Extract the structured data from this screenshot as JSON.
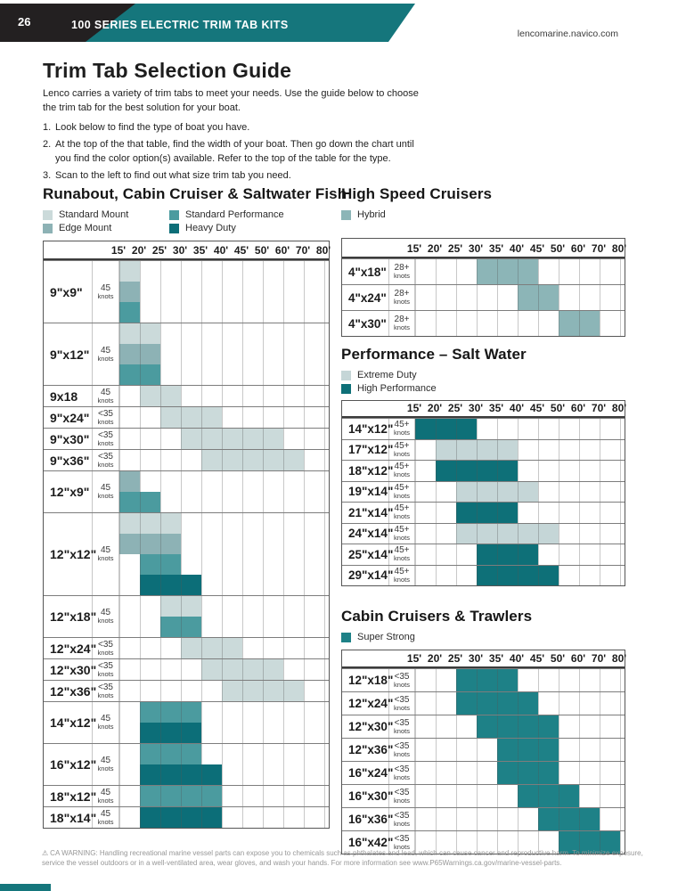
{
  "header": {
    "page_number": "26",
    "title": "100 SERIES ELECTRIC TRIM TAB KITS",
    "website": "lencomarine.navico.com"
  },
  "intro": {
    "title": "Trim Tab Selection Guide",
    "paragraph": "Lenco carries a variety of trim tabs to meet your needs. Use the guide below to choose the trim tab for the best solution for your boat.",
    "steps": [
      {
        "num": "1.",
        "text": "Look below to find the type of boat you have."
      },
      {
        "num": "2.",
        "text": "At the top of the that table, find the width of your boat. Then go down the chart until you find the color option(s) available. Refer to the top of the table for the type."
      },
      {
        "num": "3.",
        "text": "Scan to the left to find out what size trim tab you need."
      }
    ]
  },
  "colors": {
    "banner_teal": "#15767C",
    "banner_black": "#232021",
    "standard_mount": "#CBDADA",
    "edge_mount": "#8DB2B5",
    "standard_performance": "#4B9B9F",
    "heavy_duty": "#0C6E78",
    "hybrid": "#8CB5B7",
    "extreme_duty": "#C5D6D7",
    "high_performance": "#0E7078",
    "super_strong": "#1E8187"
  },
  "tables": [
    {
      "title": "Runabout, Cabin Cruiser & Saltwater Fish",
      "legend_columns": 2,
      "legend": [
        {
          "label": "Standard Mount",
          "color": "standard_mount"
        },
        {
          "label": "Standard Performance",
          "color": "standard_performance"
        },
        {
          "label": "Edge Mount",
          "color": "edge_mount"
        },
        {
          "label": "Heavy Duty",
          "color": "heavy_duty"
        }
      ],
      "columns": [
        "15'",
        "20'",
        "25'",
        "30'",
        "35'",
        "40'",
        "45'",
        "50'",
        "60'",
        "70'",
        "80'"
      ],
      "rows": [
        {
          "size": "9\"x9\"",
          "speed": "45",
          "unit": "knots",
          "bands": [
            {
              "color": "standard_mount",
              "from": "15'",
              "to": "20'"
            },
            {
              "color": "edge_mount",
              "from": "15'",
              "to": "20'"
            },
            {
              "color": "standard_performance",
              "from": "15'",
              "to": "20'"
            }
          ]
        },
        {
          "size": "9\"x12\"",
          "speed": "45",
          "unit": "knots",
          "bands": [
            {
              "color": "standard_mount",
              "from": "15'",
              "to": "25'"
            },
            {
              "color": "edge_mount",
              "from": "15'",
              "to": "25'"
            },
            {
              "color": "standard_performance",
              "from": "15'",
              "to": "25'"
            }
          ]
        },
        {
          "size": "9x18",
          "speed": "45",
          "unit": "knots",
          "bands": [
            {
              "color": "standard_mount",
              "from": "20'",
              "to": "30'"
            }
          ]
        },
        {
          "size": "9\"x24\"",
          "speed": "<35",
          "unit": "knots",
          "bands": [
            {
              "color": "standard_mount",
              "from": "25'",
              "to": "40'"
            }
          ]
        },
        {
          "size": "9\"x30\"",
          "speed": "<35",
          "unit": "knots",
          "bands": [
            {
              "color": "standard_mount",
              "from": "30'",
              "to": "60'"
            }
          ]
        },
        {
          "size": "9\"x36\"",
          "speed": "<35",
          "unit": "knots",
          "bands": [
            {
              "color": "standard_mount",
              "from": "35'",
              "to": "70'"
            }
          ]
        },
        {
          "size": "12\"x9\"",
          "speed": "45",
          "unit": "knots",
          "bands": [
            {
              "color": "edge_mount",
              "from": "15'",
              "to": "20'"
            },
            {
              "color": "standard_performance",
              "from": "15'",
              "to": "25'"
            }
          ]
        },
        {
          "size": "12\"x12\"",
          "speed": "45",
          "unit": "knots",
          "bands": [
            {
              "color": "standard_mount",
              "from": "15'",
              "to": "30'"
            },
            {
              "color": "edge_mount",
              "from": "15'",
              "to": "30'"
            },
            {
              "color": "standard_performance",
              "from": "20'",
              "to": "30'"
            },
            {
              "color": "heavy_duty",
              "from": "20'",
              "to": "35'"
            }
          ]
        },
        {
          "size": "12\"x18\"",
          "speed": "45",
          "unit": "knots",
          "bands": [
            {
              "color": "standard_mount",
              "from": "25'",
              "to": "35'"
            },
            {
              "color": "standard_performance",
              "from": "25'",
              "to": "35'"
            }
          ]
        },
        {
          "size": "12\"x24\"",
          "speed": "<35",
          "unit": "knots",
          "bands": [
            {
              "color": "standard_mount",
              "from": "30'",
              "to": "45'"
            }
          ]
        },
        {
          "size": "12\"x30\"",
          "speed": "<35",
          "unit": "knots",
          "bands": [
            {
              "color": "standard_mount",
              "from": "35'",
              "to": "60'"
            }
          ]
        },
        {
          "size": "12\"x36\"",
          "speed": "<35",
          "unit": "knots",
          "bands": [
            {
              "color": "standard_mount",
              "from": "40'",
              "to": "70'"
            }
          ]
        },
        {
          "size": "14\"x12\"",
          "speed": "45",
          "unit": "knots",
          "bands": [
            {
              "color": "standard_performance",
              "from": "20'",
              "to": "35'"
            },
            {
              "color": "heavy_duty",
              "from": "20'",
              "to": "35'"
            }
          ]
        },
        {
          "size": "16\"x12\"",
          "speed": "45",
          "unit": "knots",
          "bands": [
            {
              "color": "standard_performance",
              "from": "20'",
              "to": "35'"
            },
            {
              "color": "heavy_duty",
              "from": "20'",
              "to": "40'"
            }
          ]
        },
        {
          "size": "18\"x12\"",
          "speed": "45",
          "unit": "knots",
          "bands": [
            {
              "color": "standard_performance",
              "from": "20'",
              "to": "40'"
            }
          ]
        },
        {
          "size": "18\"x14\"",
          "speed": "45",
          "unit": "knots",
          "bands": [
            {
              "color": "heavy_duty",
              "from": "20'",
              "to": "40'"
            }
          ]
        }
      ]
    },
    {
      "title": "High Speed Cruisers",
      "legend_columns": 1,
      "legend": [
        {
          "label": "Hybrid",
          "color": "hybrid"
        }
      ],
      "columns": [
        "15'",
        "20'",
        "25'",
        "30'",
        "35'",
        "40'",
        "45'",
        "50'",
        "60'",
        "70'",
        "80'"
      ],
      "rows": [
        {
          "size": "4\"x18\"",
          "speed": "28+",
          "unit": "knots",
          "bands": [
            {
              "color": "hybrid",
              "from": "30'",
              "to": "45'"
            }
          ]
        },
        {
          "size": "4\"x24\"",
          "speed": "28+",
          "unit": "knots",
          "bands": [
            {
              "color": "hybrid",
              "from": "40'",
              "to": "50'"
            }
          ]
        },
        {
          "size": "4\"x30\"",
          "speed": "28+",
          "unit": "knots",
          "bands": [
            {
              "color": "hybrid",
              "from": "50'",
              "to": "70'"
            }
          ]
        }
      ]
    },
    {
      "title": "Performance – Salt Water",
      "legend_columns": 1,
      "legend": [
        {
          "label": "Extreme Duty",
          "color": "extreme_duty"
        },
        {
          "label": "High Performance",
          "color": "high_performance"
        }
      ],
      "columns": [
        "15'",
        "20'",
        "25'",
        "30'",
        "35'",
        "40'",
        "45'",
        "50'",
        "60'",
        "70'",
        "80'"
      ],
      "rows": [
        {
          "size": "14\"x12\"",
          "speed": "45+",
          "unit": "knots",
          "bands": [
            {
              "color": "high_performance",
              "from": "15'",
              "to": "30'"
            }
          ]
        },
        {
          "size": "17\"x12\"",
          "speed": "45+",
          "unit": "knots",
          "bands": [
            {
              "color": "extreme_duty",
              "from": "20'",
              "to": "40'"
            }
          ]
        },
        {
          "size": "18\"x12\"",
          "speed": "45+",
          "unit": "knots",
          "bands": [
            {
              "color": "high_performance",
              "from": "20'",
              "to": "40'"
            }
          ]
        },
        {
          "size": "19\"x14\"",
          "speed": "45+",
          "unit": "knots",
          "bands": [
            {
              "color": "extreme_duty",
              "from": "25'",
              "to": "45'"
            }
          ]
        },
        {
          "size": "21\"x14\"",
          "speed": "45+",
          "unit": "knots",
          "bands": [
            {
              "color": "high_performance",
              "from": "25'",
              "to": "40'"
            }
          ]
        },
        {
          "size": "24\"x14\"",
          "speed": "45+",
          "unit": "knots",
          "bands": [
            {
              "color": "extreme_duty",
              "from": "25'",
              "to": "50'"
            }
          ]
        },
        {
          "size": "25\"x14\"",
          "speed": "45+",
          "unit": "knots",
          "bands": [
            {
              "color": "high_performance",
              "from": "30'",
              "to": "45'"
            }
          ]
        },
        {
          "size": "29\"x14\"",
          "speed": "45+",
          "unit": "knots",
          "bands": [
            {
              "color": "high_performance",
              "from": "30'",
              "to": "50'"
            }
          ]
        }
      ]
    },
    {
      "title": "Cabin Cruisers & Trawlers",
      "legend_columns": 1,
      "legend": [
        {
          "label": "Super Strong",
          "color": "super_strong"
        }
      ],
      "columns": [
        "15'",
        "20'",
        "25'",
        "30'",
        "35'",
        "40'",
        "45'",
        "50'",
        "60'",
        "70'",
        "80'"
      ],
      "rows": [
        {
          "size": "12\"x18\"",
          "speed": "<35",
          "unit": "knots",
          "bands": [
            {
              "color": "super_strong",
              "from": "25'",
              "to": "40'"
            }
          ]
        },
        {
          "size": "12\"x24\"",
          "speed": "<35",
          "unit": "knots",
          "bands": [
            {
              "color": "super_strong",
              "from": "25'",
              "to": "45'"
            }
          ]
        },
        {
          "size": "12\"x30\"",
          "speed": "<35",
          "unit": "knots",
          "bands": [
            {
              "color": "super_strong",
              "from": "30'",
              "to": "50'"
            }
          ]
        },
        {
          "size": "12\"x36\"",
          "speed": "<35",
          "unit": "knots",
          "bands": [
            {
              "color": "super_strong",
              "from": "35'",
              "to": "50'"
            }
          ]
        },
        {
          "size": "16\"x24\"",
          "speed": "<35",
          "unit": "knots",
          "bands": [
            {
              "color": "super_strong",
              "from": "35'",
              "to": "50'"
            }
          ]
        },
        {
          "size": "16\"x30\"",
          "speed": "<35",
          "unit": "knots",
          "bands": [
            {
              "color": "super_strong",
              "from": "40'",
              "to": "60'"
            }
          ]
        },
        {
          "size": "16\"x36\"",
          "speed": "<35",
          "unit": "knots",
          "bands": [
            {
              "color": "super_strong",
              "from": "45'",
              "to": "70'"
            }
          ]
        },
        {
          "size": "16\"x42\"",
          "speed": "<35",
          "unit": "knots",
          "bands": [
            {
              "color": "super_strong",
              "from": "50'",
              "to": "80'"
            }
          ]
        }
      ]
    }
  ],
  "footer": {
    "warning_symbol": "⚠",
    "text": "CA WARNING: Handling recreational marine vessel parts can expose you to chemicals such as phthalates and lead, which can cause cancer and reproductive harm. To minimize exposure, service the vessel outdoors or in a well-ventilated area, wear gloves, and wash your hands. For more information see www.P65Warnings.ca.gov/marine-vessel-parts."
  }
}
